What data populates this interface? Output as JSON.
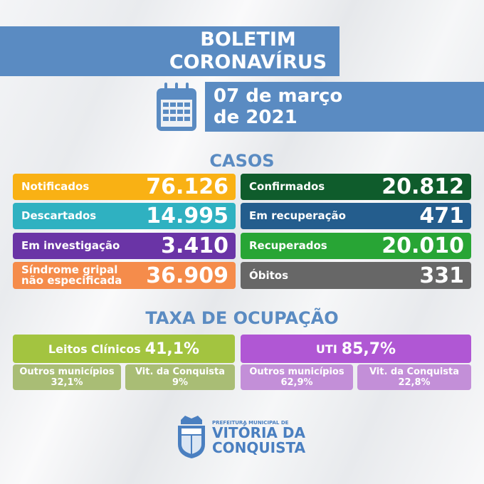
{
  "header": {
    "title_line1": "BOLETIM",
    "title_line2": "CORONAVÍRUS",
    "date_line1": "07 de março",
    "date_line2": "de 2021"
  },
  "casos": {
    "heading": "CASOS",
    "items": [
      {
        "label": "Notificados",
        "value": "76.126",
        "color": "#f9b114"
      },
      {
        "label": "Confirmados",
        "value": "20.812",
        "color": "#0f5c2c"
      },
      {
        "label": "Descartados",
        "value": "14.995",
        "color": "#2fb1c1"
      },
      {
        "label": "Em recuperação",
        "value": "471",
        "color": "#245d8d"
      },
      {
        "label": "Em investigação",
        "value": "3.410",
        "color": "#6a34a6"
      },
      {
        "label": "Recuperados",
        "value": "20.010",
        "color": "#28a535"
      },
      {
        "label": "Síndrome gripal",
        "label2": "não especificada",
        "value": "36.909",
        "color": "#f58c4b"
      },
      {
        "label": "Óbitos",
        "value": "331",
        "color": "#676767"
      }
    ]
  },
  "ocupacao": {
    "heading": "TAXA DE OCUPAÇÃO",
    "leitos": {
      "label": "Leitos Clínicos",
      "value": "41,1%",
      "outros_label": "Outros municípios",
      "outros_value": "32,1%",
      "vdc_label": "Vit. da Conquista",
      "vdc_value": "9%"
    },
    "uti": {
      "label": "UTI",
      "value": "85,7%",
      "outros_label": "Outros municípios",
      "outros_value": "62,9%",
      "vdc_label": "Vit. da Conquista",
      "vdc_value": "22,8%"
    }
  },
  "footer": {
    "logo_line1": "PREFEITURA MUNICIPAL DE",
    "logo_line2": "VITÓRIA DA",
    "logo_line3": "CONQUISTA"
  }
}
